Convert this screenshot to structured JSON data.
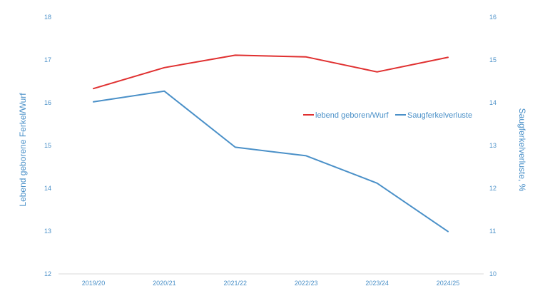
{
  "chart_data": {
    "type": "line",
    "categories": [
      "2019/20",
      "2020/21",
      "2021/22",
      "2022/23",
      "2023/24",
      "2024/25"
    ],
    "series": [
      {
        "name": "lebend geboren/Wurf",
        "axis": "left",
        "color": "#e03030",
        "values": [
          16.33,
          16.82,
          17.11,
          17.07,
          16.72,
          17.06
        ]
      },
      {
        "name": "Saugferkelverluste",
        "axis": "right",
        "color": "#4a90c8",
        "values": [
          14.02,
          14.27,
          12.96,
          12.76,
          12.12,
          10.99
        ]
      }
    ],
    "ylabel_left": "Lebend geborene Ferkel/Wurf",
    "ylabel_right": "Saugferkelverluste, %",
    "ylim_left": [
      12,
      18
    ],
    "ylim_right": [
      10,
      16
    ],
    "yticks_left": [
      "12",
      "13",
      "14",
      "15",
      "16",
      "17",
      "18"
    ],
    "yticks_right": [
      "10",
      "11",
      "12",
      "13",
      "14",
      "15",
      "16"
    ],
    "grid": false,
    "legend_position": "right-middle",
    "axis_color": "#4a90c8",
    "baseline_color": "#d9d9d9"
  }
}
